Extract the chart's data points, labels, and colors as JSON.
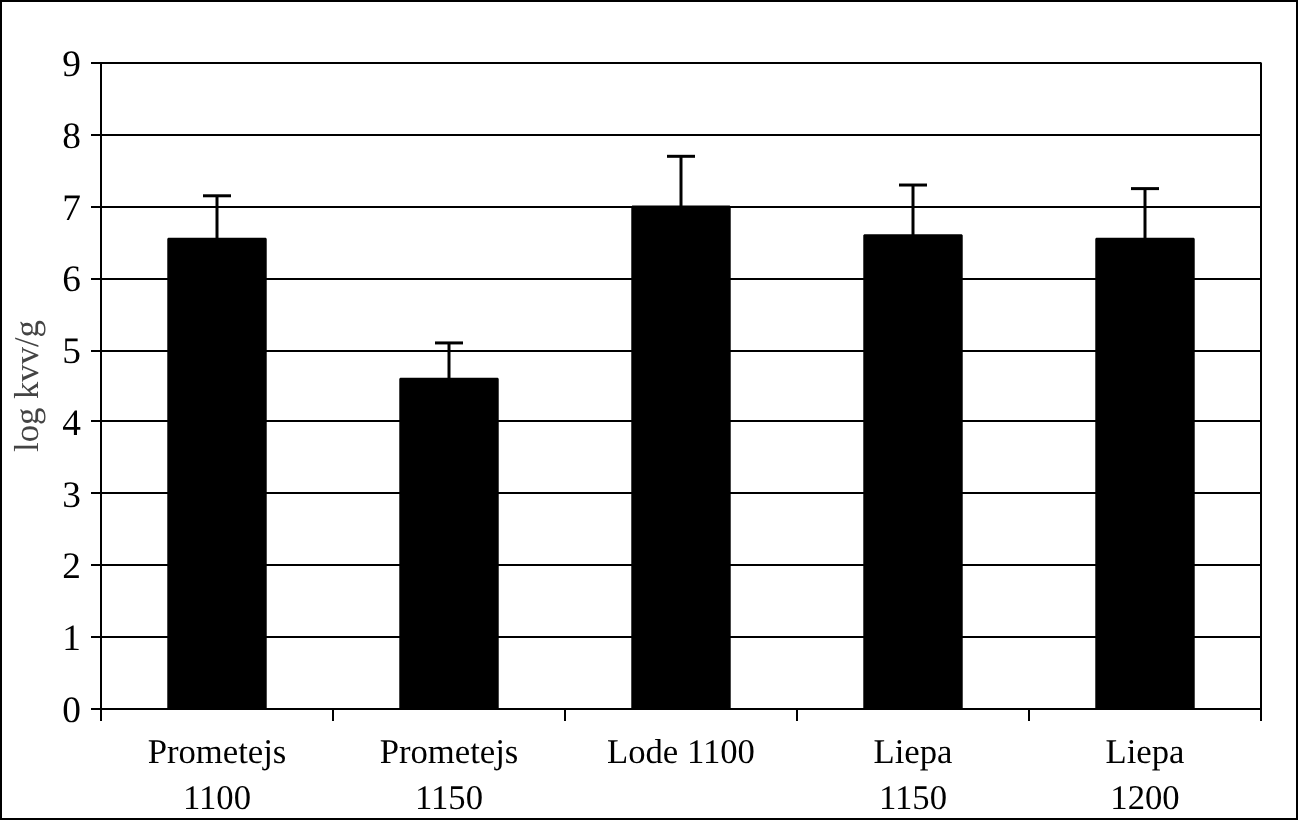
{
  "chart_data": {
    "type": "bar",
    "ylabel": "log kvv/g",
    "categories": [
      "Prometejs 1100",
      "Prometejs 1150",
      "Lode 1100",
      "Liepa 1150",
      "Liepa 1200"
    ],
    "values": [
      6.55,
      4.6,
      7.0,
      6.6,
      6.55
    ],
    "errors": [
      [
        6.55,
        7.15
      ],
      [
        4.6,
        5.1
      ],
      [
        7.0,
        7.7
      ],
      [
        6.6,
        7.3
      ],
      [
        6.55,
        7.25
      ]
    ],
    "color": "#000000",
    "ylim": [
      0,
      9
    ],
    "yticks": [
      0,
      1,
      2,
      3,
      4,
      5,
      6,
      7,
      8,
      9
    ],
    "grid": "y"
  }
}
